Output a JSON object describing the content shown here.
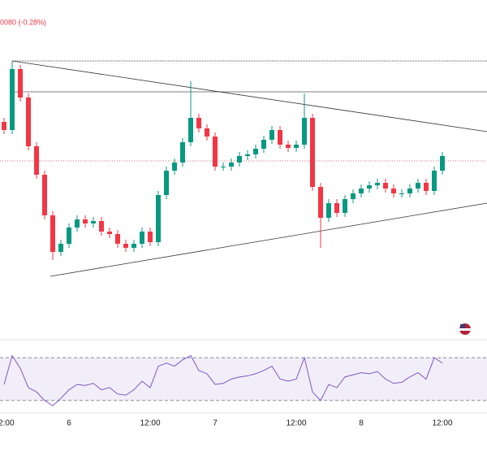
{
  "header_text": "0080 (-0.28%)",
  "chart_data": {
    "type": "candlestick",
    "categories": [
      "12:00",
      null,
      null,
      null,
      null,
      null,
      null,
      null,
      "6",
      null,
      null,
      null,
      null,
      null,
      null,
      null,
      null,
      null,
      "12:00",
      null,
      null,
      null,
      null,
      null,
      null,
      null,
      "7",
      null,
      null,
      null,
      null,
      null,
      null,
      null,
      null,
      null,
      "12:00",
      null,
      null,
      null,
      null,
      null,
      null,
      null,
      "8",
      null,
      null,
      null,
      null,
      null,
      null,
      null,
      null,
      null,
      "12:00"
    ],
    "open": [
      265,
      255,
      330,
      295,
      235,
      200,
      150,
      105,
      115,
      135,
      145,
      140,
      143,
      130,
      127,
      115,
      110,
      115,
      130,
      117,
      175,
      205,
      215,
      240,
      270,
      257,
      247,
      210,
      210,
      215,
      223,
      225,
      232,
      243,
      255,
      237,
      233,
      237,
      270,
      185,
      147,
      165,
      153,
      170,
      177,
      183,
      187,
      190,
      183,
      177,
      177,
      183,
      190,
      180,
      205
    ],
    "high": [
      270,
      340,
      335,
      300,
      240,
      205,
      155,
      120,
      140,
      150,
      150,
      148,
      148,
      135,
      132,
      120,
      120,
      135,
      135,
      180,
      210,
      220,
      245,
      315,
      275,
      262,
      252,
      215,
      220,
      228,
      230,
      237,
      248,
      260,
      260,
      242,
      242,
      300,
      275,
      190,
      170,
      170,
      175,
      182,
      188,
      192,
      195,
      195,
      188,
      182,
      188,
      195,
      195,
      210,
      228
    ],
    "low": [
      250,
      250,
      290,
      230,
      195,
      145,
      95,
      100,
      110,
      130,
      135,
      135,
      125,
      122,
      110,
      105,
      105,
      110,
      112,
      112,
      170,
      200,
      210,
      235,
      252,
      242,
      205,
      205,
      205,
      210,
      218,
      220,
      227,
      238,
      232,
      228,
      228,
      232,
      180,
      110,
      142,
      148,
      148,
      165,
      172,
      178,
      182,
      178,
      172,
      172,
      172,
      178,
      175,
      175,
      200
    ],
    "close": [
      255,
      330,
      295,
      235,
      200,
      150,
      105,
      115,
      135,
      145,
      140,
      143,
      130,
      127,
      115,
      110,
      115,
      130,
      117,
      175,
      205,
      215,
      240,
      270,
      257,
      247,
      210,
      210,
      215,
      223,
      225,
      232,
      243,
      255,
      237,
      233,
      237,
      270,
      185,
      147,
      165,
      153,
      170,
      177,
      183,
      187,
      190,
      183,
      177,
      177,
      183,
      190,
      180,
      205,
      223
    ],
    "ylim": [
      0,
      415
    ],
    "up_color": "#089981",
    "down_color": "#f23645",
    "rsi": [
      45,
      72,
      60,
      42,
      38,
      30,
      25,
      32,
      40,
      45,
      44,
      46,
      40,
      42,
      36,
      35,
      40,
      48,
      42,
      62,
      65,
      62,
      68,
      72,
      58,
      55,
      45,
      46,
      50,
      52,
      53,
      55,
      58,
      62,
      50,
      48,
      50,
      70,
      38,
      30,
      45,
      42,
      52,
      54,
      56,
      55,
      57,
      50,
      46,
      47,
      52,
      56,
      50,
      70,
      65
    ],
    "rsi_color": "#7e57c2",
    "rsi_ylim": [
      20,
      80
    ],
    "rsi_levels": [
      30,
      70
    ]
  }
}
